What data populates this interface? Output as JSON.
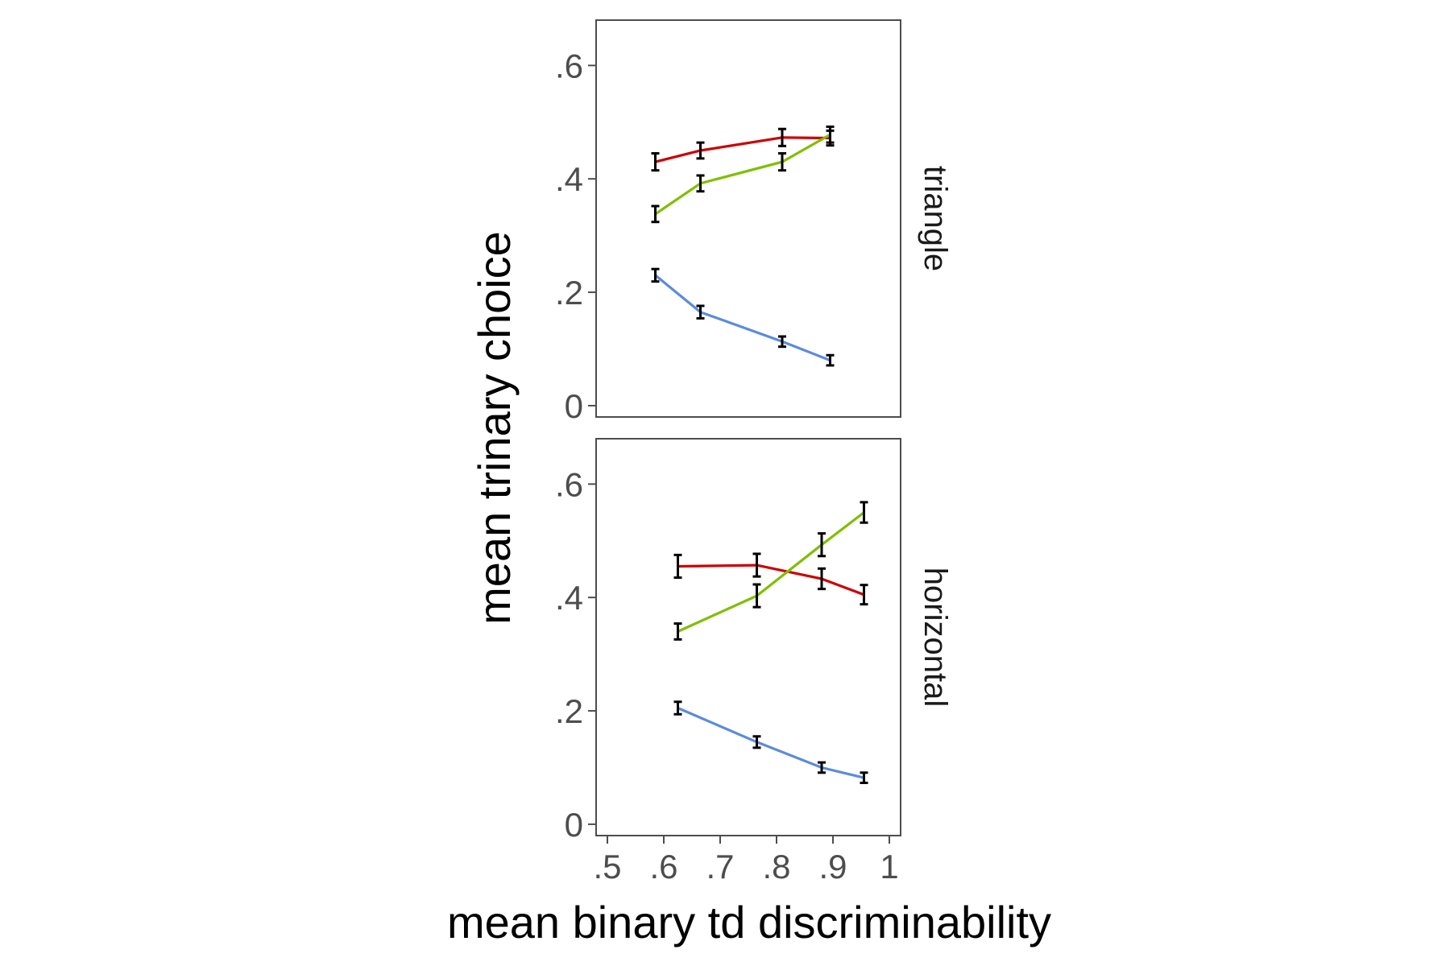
{
  "chart_data": {
    "type": "line",
    "xlabel": "mean binary td discriminability",
    "ylabel": "mean trinary choice",
    "xlim": [
      0.48,
      1.02
    ],
    "ylim": [
      -0.02,
      0.68
    ],
    "x_ticks": [
      {
        "value": 0.5,
        "label": ".5"
      },
      {
        "value": 0.6,
        "label": ".6"
      },
      {
        "value": 0.7,
        "label": ".7"
      },
      {
        "value": 0.8,
        "label": ".8"
      },
      {
        "value": 0.9,
        "label": ".9"
      },
      {
        "value": 1.0,
        "label": "1"
      }
    ],
    "y_ticks": [
      {
        "value": 0.0,
        "label": "0"
      },
      {
        "value": 0.2,
        "label": ".2"
      },
      {
        "value": 0.4,
        "label": ".4"
      },
      {
        "value": 0.6,
        "label": ".6"
      }
    ],
    "grid": false,
    "legend": "none",
    "facets": [
      {
        "label": "triangle",
        "series": [
          {
            "color": "#cc0000",
            "x": [
              0.585,
              0.665,
              0.81,
              0.895
            ],
            "y": [
              0.43,
              0.45,
              0.473,
              0.472
            ],
            "err": [
              0.015,
              0.014,
              0.015,
              0.013
            ]
          },
          {
            "color": "#7fbf00",
            "x": [
              0.585,
              0.665,
              0.81,
              0.895
            ],
            "y": [
              0.338,
              0.392,
              0.43,
              0.478
            ],
            "err": [
              0.014,
              0.014,
              0.015,
              0.014
            ]
          },
          {
            "color": "#5b8bdc",
            "x": [
              0.585,
              0.665,
              0.81,
              0.895
            ],
            "y": [
              0.23,
              0.165,
              0.113,
              0.08
            ],
            "err": [
              0.011,
              0.011,
              0.009,
              0.009
            ]
          }
        ]
      },
      {
        "label": "horizontal",
        "series": [
          {
            "color": "#cc0000",
            "x": [
              0.625,
              0.765,
              0.88,
              0.955
            ],
            "y": [
              0.455,
              0.457,
              0.433,
              0.405
            ],
            "err": [
              0.02,
              0.02,
              0.018,
              0.017
            ]
          },
          {
            "color": "#7fbf00",
            "x": [
              0.625,
              0.765,
              0.88,
              0.955
            ],
            "y": [
              0.34,
              0.403,
              0.493,
              0.55
            ],
            "err": [
              0.014,
              0.02,
              0.02,
              0.018
            ]
          },
          {
            "color": "#5b8bdc",
            "x": [
              0.625,
              0.765,
              0.88,
              0.955
            ],
            "y": [
              0.205,
              0.145,
              0.1,
              0.082
            ],
            "err": [
              0.011,
              0.01,
              0.009,
              0.009
            ]
          }
        ]
      }
    ]
  }
}
